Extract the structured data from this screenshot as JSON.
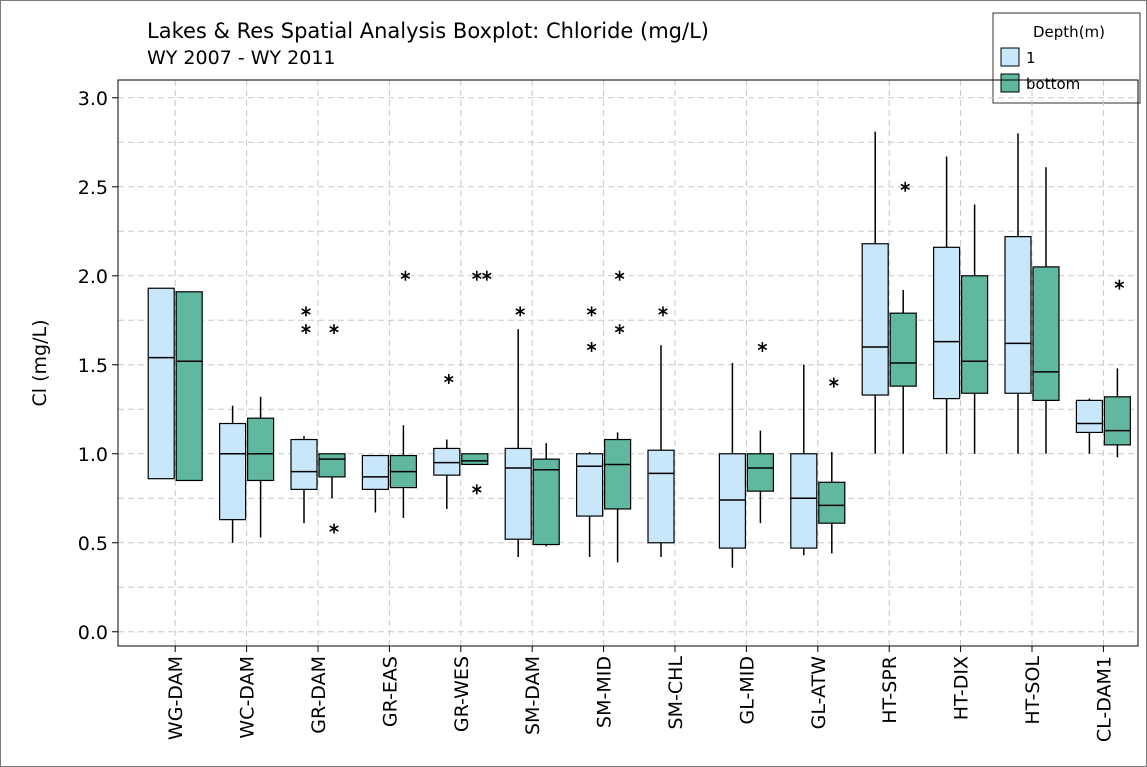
{
  "chart_data": {
    "type": "boxplot",
    "title": "Lakes & Res Spatial Analysis Boxplot: Chloride (mg/L)",
    "subtitle": "WY 2007 - WY 2011",
    "y_label": "Cl (mg/L)",
    "legend_title": "Depth(m)",
    "legend_position": "top-right",
    "categories": [
      "WG-DAM",
      "WC-DAM",
      "GR-DAM",
      "GR-EAS",
      "GR-WES",
      "SM-DAM",
      "SM-MID",
      "SM-CHL",
      "GL-MID",
      "GL-ATW",
      "HT-SPR",
      "HT-DIX",
      "HT-SOL",
      "CL-DAM1"
    ],
    "ylim": [
      -0.08,
      3.1
    ],
    "yticks": [
      {
        "value": 0,
        "label": "0.0"
      },
      {
        "value": 0.5,
        "label": "0.5"
      },
      {
        "value": 1,
        "label": "1.0"
      },
      {
        "value": 1.5,
        "label": "1.5"
      },
      {
        "value": 2,
        "label": "2.0"
      },
      {
        "value": 2.5,
        "label": "2.5"
      },
      {
        "value": 3,
        "label": "3.0"
      }
    ],
    "yminor": [
      0.25,
      0.75,
      1.25,
      1.75,
      2.25,
      2.75
    ],
    "grid": true,
    "series": [
      {
        "name": "1",
        "color": "#c9e7fb",
        "min": [
          0.86,
          0.5,
          0.61,
          0.67,
          0.69,
          0.42,
          0.42,
          0.42,
          0.36,
          0.43,
          1.0,
          1.0,
          1.0,
          1.0
        ],
        "q1": [
          0.86,
          0.63,
          0.8,
          0.8,
          0.88,
          0.52,
          0.65,
          0.5,
          0.47,
          0.47,
          1.33,
          1.31,
          1.34,
          1.12
        ],
        "median": [
          1.54,
          1.0,
          0.9,
          0.87,
          0.95,
          0.92,
          0.93,
          0.89,
          0.74,
          0.75,
          1.6,
          1.63,
          1.62,
          1.17
        ],
        "q3": [
          1.93,
          1.17,
          1.08,
          0.99,
          1.03,
          1.03,
          1.0,
          1.02,
          1.0,
          1.0,
          2.18,
          2.16,
          2.22,
          1.3
        ],
        "max": [
          1.93,
          1.27,
          1.1,
          0.99,
          1.08,
          1.7,
          1.01,
          1.61,
          1.51,
          1.5,
          2.81,
          2.67,
          2.8,
          1.31
        ],
        "outliers": [
          [],
          [],
          [
            1.8,
            1.7
          ],
          [],
          [
            1.42
          ],
          [
            1.8
          ],
          [
            1.8,
            1.6
          ],
          [
            1.8
          ],
          [],
          [],
          [],
          [],
          [],
          []
        ]
      },
      {
        "name": "bottom",
        "color": "#5fb89f",
        "min": [
          0.85,
          0.53,
          0.75,
          0.64,
          0.94,
          0.48,
          0.39,
          null,
          0.61,
          0.44,
          1.0,
          1.0,
          1.0,
          0.98
        ],
        "q1": [
          0.85,
          0.85,
          0.87,
          0.81,
          0.94,
          0.49,
          0.69,
          null,
          0.79,
          0.61,
          1.38,
          1.34,
          1.3,
          1.05
        ],
        "median": [
          1.52,
          1.0,
          0.97,
          0.9,
          0.96,
          0.91,
          0.94,
          null,
          0.92,
          0.71,
          1.51,
          1.52,
          1.46,
          1.13
        ],
        "q3": [
          1.91,
          1.2,
          1.0,
          0.99,
          1.0,
          0.97,
          1.08,
          null,
          1.0,
          0.84,
          1.79,
          2.0,
          2.05,
          1.32
        ],
        "max": [
          1.91,
          1.32,
          1.0,
          1.16,
          1.0,
          1.06,
          1.12,
          null,
          1.13,
          1.01,
          1.92,
          2.4,
          2.61,
          1.48
        ],
        "outliers": [
          [],
          [],
          [
            1.7,
            0.58
          ],
          [
            2.0
          ],
          [
            2.0,
            2.0,
            0.8
          ],
          [],
          [
            2.0,
            1.7
          ],
          [],
          [
            1.6
          ],
          [
            1.4
          ],
          [
            2.5
          ],
          [],
          [],
          [
            1.95
          ]
        ]
      }
    ]
  }
}
